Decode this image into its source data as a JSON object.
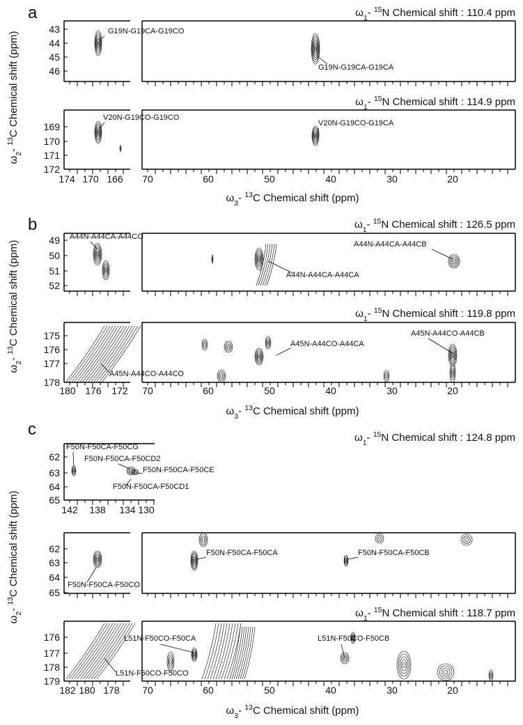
{
  "panels": [
    {
      "letter": "a",
      "ylabel": [
        "ω",
        "2",
        "- ",
        "13",
        "C Chemical shift (ppm)"
      ],
      "plots": [
        {
          "title": [
            "ω",
            "1",
            "- ",
            "15",
            "N Chemical shift : 110.4 ppm"
          ],
          "yticks": [
            43,
            44,
            45,
            46
          ],
          "annotations": [
            "G19N-G19CA-G19CO",
            "G19N-G19CA-G19CA"
          ]
        },
        {
          "title": [
            "ω",
            "1",
            "- ",
            "15",
            "N Chemical shift : 114.9 ppm"
          ],
          "yticks": [
            169,
            170,
            171,
            172
          ],
          "annotations": [
            "V20N-G19CO-G19CO",
            "V20N-G19CO-G19CA"
          ]
        }
      ],
      "xticks_left": [
        174,
        170,
        166
      ],
      "xticks_right": [
        70,
        60,
        50,
        40,
        30,
        20
      ],
      "xlabel": [
        "ω",
        "3",
        "- ",
        "13",
        "C Chemical shift (ppm)"
      ]
    },
    {
      "letter": "b",
      "ylabel": [
        "ω",
        "2",
        "- ",
        "13",
        "C Chemical shift (ppm)"
      ],
      "plots": [
        {
          "title": [
            "ω",
            "1",
            "- ",
            "15",
            "N Chemical shift : 126.5 ppm"
          ],
          "yticks": [
            49,
            50,
            51,
            52
          ],
          "annotations": [
            "A44N-A44CA-A44CO",
            "A44N-A44CA-A44CA",
            "A44N-A44CA-A44CB"
          ]
        },
        {
          "title": [
            "ω",
            "1",
            "- ",
            "15",
            "N Chemical shift : 119.8 ppm"
          ],
          "yticks": [
            175,
            176,
            177,
            178
          ],
          "annotations": [
            "A45N-A44CO-A44CA",
            "A45N-A44CO-A44CB",
            "A45N-A44CO-A44CO"
          ]
        }
      ],
      "xticks_left": [
        180,
        176,
        172
      ],
      "xticks_right": [
        70,
        60,
        50,
        40,
        30,
        20
      ],
      "xlabel": [
        "ω",
        "3",
        "- ",
        "13",
        "C Chemical shift (ppm)"
      ]
    },
    {
      "letter": "c",
      "ylabel": [
        "ω",
        "2",
        "- ",
        "13",
        "C Chemical shift (ppm)"
      ],
      "plots": [
        {
          "title": [
            "ω",
            "1",
            "- ",
            "15",
            "N Chemical shift : 124.8 ppm"
          ],
          "yticks": [
            62,
            63,
            64,
            65
          ],
          "xticks": [
            142,
            138,
            134,
            130
          ],
          "annotations": [
            "F50N-F50CA-F50CG",
            "F50N-F50CA-F50CD2",
            "F50N-F50CA-F50CE",
            "F50N-F50CA-F50CD1"
          ]
        },
        {
          "yticks": [
            62,
            63,
            64,
            65
          ],
          "annotations": [
            "F50N-F50CA-F50CA",
            "F50N-F50CA-F50CB",
            "F50N-F50CA-F50CO"
          ]
        },
        {
          "title": [
            "ω",
            "1",
            "- ",
            "15",
            "N Chemical shift : 118.7 ppm"
          ],
          "yticks": [
            176,
            177,
            178,
            179
          ],
          "annotations": [
            "L51N-F50CO-F50CA",
            "L51N-F50CO-F50CB",
            "L51N-F50CO-F50CO"
          ]
        }
      ],
      "xticks_left": [
        182,
        180,
        178
      ],
      "xticks_right": [
        70,
        60,
        50,
        40,
        30,
        20
      ],
      "xlabel": [
        "ω",
        "3",
        "- ",
        "13",
        "C Chemical shift (ppm)"
      ]
    }
  ]
}
